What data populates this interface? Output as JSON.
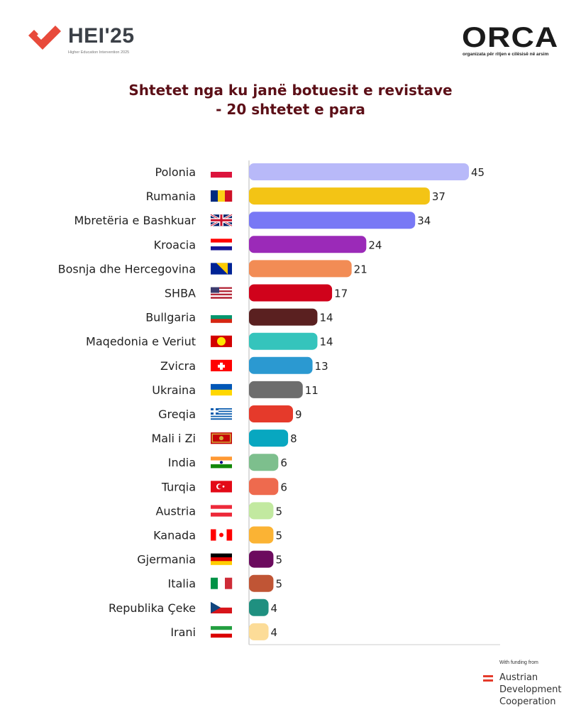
{
  "logos": {
    "left": {
      "name": "HEI'25",
      "subtitle": "Higher Education Intervention 2025",
      "color": "#e84a3b"
    },
    "right": {
      "name": "ORCA",
      "subtitle": "organizata për ritjen e cilësisë në arsim"
    }
  },
  "footer": {
    "funding_label": "With funding from",
    "funder_lines": [
      "Austrian",
      "Development",
      "Cooperation"
    ]
  },
  "chart_data": {
    "type": "bar",
    "orientation": "horizontal",
    "title": "Shtetet nga ku janë botuesit e revistave",
    "subtitle": "- 20 shtetet e para",
    "categories": [
      "Polonia",
      "Rumania",
      "Mbretëria e Bashkuar",
      "Kroacia",
      "Bosnja dhe Hercegovina",
      "SHBA",
      "Bullgaria",
      "Maqedonia e Veriut",
      "Zvicra",
      "Ukraina",
      "Greqia",
      "Mali i Zi",
      "India",
      "Turqia",
      "Austria",
      "Kanada",
      "Gjermania",
      "Italia",
      "Republika Çeke",
      "Irani"
    ],
    "values": [
      45,
      37,
      34,
      24,
      21,
      17,
      14,
      14,
      13,
      11,
      9,
      8,
      6,
      6,
      5,
      5,
      5,
      5,
      4,
      4
    ],
    "colors": [
      "#b8b9f9",
      "#f3c415",
      "#7878f5",
      "#9b2ab8",
      "#f28c55",
      "#d0021b",
      "#5a2020",
      "#35c4bc",
      "#2b99d1",
      "#6d6d6d",
      "#e53a2b",
      "#08a7c0",
      "#7dbf8d",
      "#ee6a4e",
      "#c2e9a0",
      "#fbb334",
      "#6c0b5e",
      "#c05535",
      "#1f9080",
      "#fcdc98"
    ],
    "flag_icons": [
      "flag-pl",
      "flag-ro",
      "flag-gb",
      "flag-hr",
      "flag-ba",
      "flag-us",
      "flag-bg",
      "flag-mk",
      "flag-ch",
      "flag-ua",
      "flag-gr",
      "flag-me",
      "flag-in",
      "flag-tr",
      "flag-at",
      "flag-ca",
      "flag-de",
      "flag-it",
      "flag-cz",
      "flag-ir"
    ],
    "xlim": [
      0,
      45
    ],
    "data_labels": true,
    "grid": false,
    "legend": "none"
  }
}
